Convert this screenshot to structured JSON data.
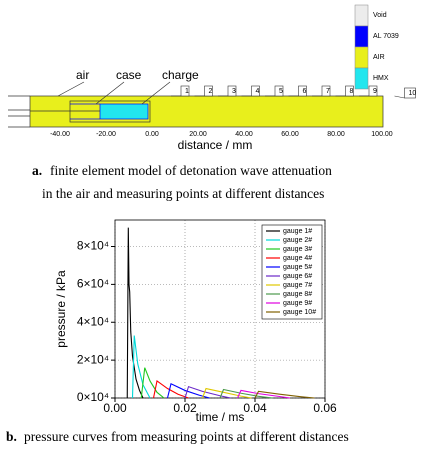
{
  "figure_a": {
    "legend": [
      {
        "label": "Void",
        "color": "#ececec"
      },
      {
        "label": "AL 7039",
        "color": "#0000ff"
      },
      {
        "label": "AIR",
        "color": "#e8ef1c"
      },
      {
        "label": "HMX",
        "color": "#22e6ee"
      }
    ],
    "parts": [
      "air",
      "case",
      "charge"
    ],
    "gauges": [
      "1",
      "2",
      "3",
      "4",
      "5",
      "6",
      "7",
      "8",
      "9",
      "10"
    ],
    "axis_ticks": [
      "-40.00",
      "-20.00",
      "0.00",
      "20.00",
      "40.00",
      "60.00",
      "80.00",
      "100.00"
    ],
    "axis_label": "distance / mm",
    "caption": {
      "prefix": "a.",
      "lines": [
        "finite element model of detonation wave attenuation",
        "in the air and measuring points at different distances"
      ]
    }
  },
  "chart_data": {
    "type": "line",
    "xlabel": "time / ms",
    "ylabel": "pressure / kPa",
    "xlim": [
      0,
      0.06
    ],
    "ylim": [
      0,
      94000
    ],
    "xticks": [
      {
        "value": 0,
        "label": "0.00"
      },
      {
        "value": 0.02,
        "label": "0.02"
      },
      {
        "value": 0.04,
        "label": "0.04"
      },
      {
        "value": 0.06,
        "label": "0.06"
      }
    ],
    "yticks": [
      {
        "value": 0,
        "label": "0×10⁴"
      },
      {
        "value": 20000,
        "label": "2×10⁴"
      },
      {
        "value": 40000,
        "label": "4×10⁴"
      },
      {
        "value": 60000,
        "label": "6×10⁴"
      },
      {
        "value": 80000,
        "label": "8×10⁴"
      }
    ],
    "grid": true,
    "legend": "upper right",
    "series": [
      {
        "name": "gauge 1#",
        "color": "#000000",
        "x": [
          0.0035,
          0.0038,
          0.004,
          0.0042,
          0.0045,
          0.005,
          0.006,
          0.007,
          0.008
        ],
        "values": [
          0,
          90000,
          60000,
          56000,
          35000,
          22000,
          10000,
          4000,
          0
        ]
      },
      {
        "name": "gauge 2#",
        "color": "#00d8d8",
        "x": [
          0.005,
          0.0055,
          0.0065,
          0.008,
          0.01
        ],
        "values": [
          0,
          33000,
          18000,
          7000,
          0
        ]
      },
      {
        "name": "gauge 3#",
        "color": "#1ec81e",
        "x": [
          0.0075,
          0.0085,
          0.01,
          0.012,
          0.014
        ],
        "values": [
          0,
          16000,
          9000,
          3000,
          0
        ]
      },
      {
        "name": "gauge 4#",
        "color": "#ff0000",
        "x": [
          0.011,
          0.012,
          0.015,
          0.018,
          0.021
        ],
        "values": [
          0,
          9000,
          5000,
          2000,
          0
        ]
      },
      {
        "name": "gauge 5#",
        "color": "#0000ff",
        "x": [
          0.015,
          0.016,
          0.02,
          0.024,
          0.027
        ],
        "values": [
          0,
          7500,
          4000,
          1500,
          0
        ]
      },
      {
        "name": "gauge 6#",
        "color": "#6a28c8",
        "x": [
          0.02,
          0.021,
          0.025,
          0.03,
          0.033
        ],
        "values": [
          0,
          6000,
          3500,
          1200,
          0
        ]
      },
      {
        "name": "gauge 7#",
        "color": "#e0c800",
        "x": [
          0.025,
          0.026,
          0.031,
          0.036,
          0.039
        ],
        "values": [
          0,
          5000,
          3000,
          1000,
          0
        ]
      },
      {
        "name": "gauge 8#",
        "color": "#4c9a4c",
        "x": [
          0.03,
          0.031,
          0.036,
          0.041,
          0.045
        ],
        "values": [
          0,
          4500,
          2500,
          900,
          0
        ]
      },
      {
        "name": "gauge 9#",
        "color": "#e000e0",
        "x": [
          0.035,
          0.036,
          0.041,
          0.047,
          0.05
        ],
        "values": [
          0,
          4000,
          2300,
          800,
          0
        ]
      },
      {
        "name": "gauge 10#",
        "color": "#806000",
        "x": [
          0.04,
          0.041,
          0.047,
          0.053,
          0.057
        ],
        "values": [
          0,
          3500,
          2000,
          700,
          0
        ]
      }
    ]
  },
  "caption_b": {
    "prefix": "b.",
    "text": "pressure curves from measuring points at different distances"
  }
}
